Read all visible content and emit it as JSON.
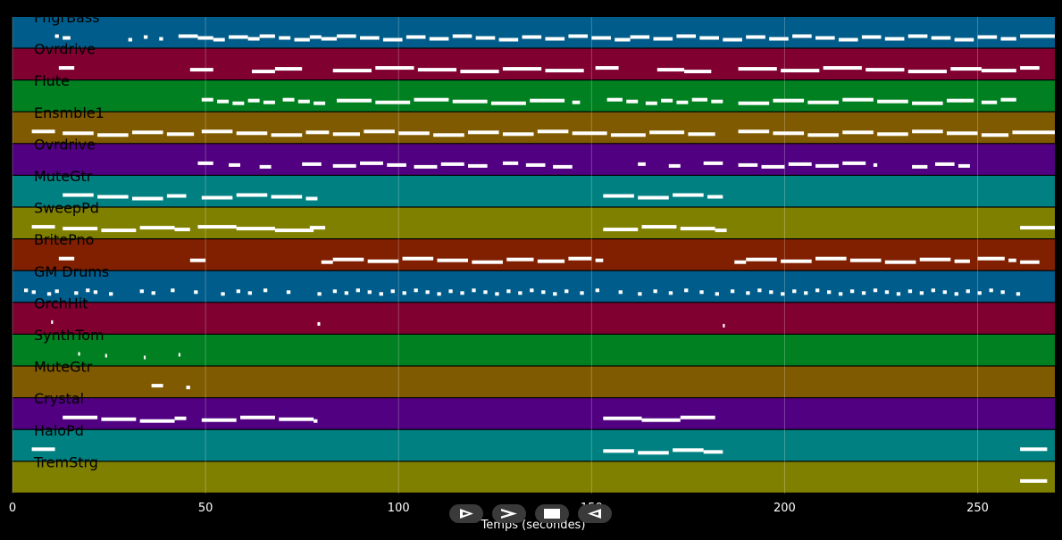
{
  "chart_data": {
    "type": "piano-roll",
    "xlabel": "Temps (secondes)",
    "xlim": [
      0,
      270
    ],
    "xticks": [
      0,
      50,
      100,
      150,
      200,
      250
    ],
    "grid": true,
    "tracks": [
      {
        "name": "FngrBass",
        "color": "#005c8a",
        "notes": [
          [
            11,
            1
          ],
          [
            13,
            2
          ],
          [
            30,
            1
          ],
          [
            34,
            1
          ],
          [
            38,
            1
          ],
          [
            43,
            5
          ],
          [
            48,
            4
          ],
          [
            52,
            3
          ],
          [
            56,
            5
          ],
          [
            61,
            3
          ],
          [
            64,
            4
          ],
          [
            69,
            3
          ],
          [
            73,
            4
          ],
          [
            77,
            3
          ],
          [
            80,
            4
          ],
          [
            84,
            5
          ],
          [
            90,
            5
          ],
          [
            96,
            5
          ],
          [
            102,
            5
          ],
          [
            108,
            5
          ],
          [
            114,
            5
          ],
          [
            120,
            5
          ],
          [
            126,
            5
          ],
          [
            132,
            5
          ],
          [
            138,
            5
          ],
          [
            144,
            5
          ],
          [
            150,
            5
          ],
          [
            156,
            4
          ],
          [
            160,
            5
          ],
          [
            166,
            5
          ],
          [
            172,
            5
          ],
          [
            178,
            5
          ],
          [
            184,
            5
          ],
          [
            190,
            5
          ],
          [
            196,
            5
          ],
          [
            202,
            5
          ],
          [
            208,
            5
          ],
          [
            214,
            5
          ],
          [
            220,
            5
          ],
          [
            226,
            5
          ],
          [
            232,
            5
          ],
          [
            238,
            5
          ],
          [
            244,
            5
          ],
          [
            250,
            5
          ],
          [
            256,
            4
          ],
          [
            261,
            9
          ]
        ]
      },
      {
        "name": "Ovrdrive",
        "color": "#800030",
        "notes": [
          [
            12,
            4
          ],
          [
            46,
            6
          ],
          [
            62,
            6
          ],
          [
            68,
            7
          ],
          [
            83,
            10
          ],
          [
            94,
            10
          ],
          [
            105,
            10
          ],
          [
            116,
            10
          ],
          [
            127,
            10
          ],
          [
            138,
            10
          ],
          [
            151,
            6
          ],
          [
            167,
            7
          ],
          [
            174,
            7
          ],
          [
            188,
            10
          ],
          [
            199,
            10
          ],
          [
            210,
            10
          ],
          [
            221,
            10
          ],
          [
            232,
            10
          ],
          [
            243,
            8
          ],
          [
            251,
            9
          ],
          [
            261,
            5
          ]
        ]
      },
      {
        "name": "Flute",
        "color": "#008020",
        "notes": [
          [
            49,
            3
          ],
          [
            53,
            3
          ],
          [
            57,
            3
          ],
          [
            61,
            3
          ],
          [
            65,
            3
          ],
          [
            70,
            3
          ],
          [
            74,
            3
          ],
          [
            78,
            3
          ],
          [
            84,
            9
          ],
          [
            94,
            9
          ],
          [
            104,
            9
          ],
          [
            114,
            9
          ],
          [
            124,
            9
          ],
          [
            134,
            9
          ],
          [
            145,
            2
          ],
          [
            154,
            4
          ],
          [
            159,
            3
          ],
          [
            164,
            3
          ],
          [
            168,
            3
          ],
          [
            172,
            3
          ],
          [
            176,
            4
          ],
          [
            181,
            3
          ],
          [
            188,
            8
          ],
          [
            197,
            8
          ],
          [
            206,
            8
          ],
          [
            215,
            8
          ],
          [
            224,
            8
          ],
          [
            233,
            8
          ],
          [
            242,
            7
          ],
          [
            251,
            4
          ],
          [
            256,
            4
          ]
        ]
      },
      {
        "name": "Ensmble1",
        "color": "#805a00",
        "notes": [
          [
            5,
            6
          ],
          [
            13,
            8
          ],
          [
            22,
            8
          ],
          [
            31,
            8
          ],
          [
            40,
            7
          ],
          [
            49,
            8
          ],
          [
            58,
            8
          ],
          [
            67,
            8
          ],
          [
            76,
            6
          ],
          [
            83,
            7
          ],
          [
            91,
            8
          ],
          [
            100,
            8
          ],
          [
            109,
            8
          ],
          [
            118,
            8
          ],
          [
            127,
            8
          ],
          [
            136,
            8
          ],
          [
            145,
            9
          ],
          [
            155,
            9
          ],
          [
            165,
            9
          ],
          [
            175,
            7
          ],
          [
            188,
            8
          ],
          [
            197,
            8
          ],
          [
            206,
            8
          ],
          [
            215,
            8
          ],
          [
            224,
            8
          ],
          [
            233,
            8
          ],
          [
            242,
            8
          ],
          [
            251,
            7
          ],
          [
            259,
            11
          ]
        ]
      },
      {
        "name": "Ovrdrive",
        "color": "#500080",
        "notes": [
          [
            48,
            4
          ],
          [
            56,
            3
          ],
          [
            64,
            3
          ],
          [
            75,
            5
          ],
          [
            83,
            6
          ],
          [
            90,
            6
          ],
          [
            97,
            5
          ],
          [
            104,
            6
          ],
          [
            111,
            6
          ],
          [
            118,
            5
          ],
          [
            127,
            4
          ],
          [
            133,
            5
          ],
          [
            140,
            5
          ],
          [
            162,
            2
          ],
          [
            170,
            3
          ],
          [
            179,
            5
          ],
          [
            188,
            5
          ],
          [
            194,
            6
          ],
          [
            201,
            6
          ],
          [
            208,
            6
          ],
          [
            215,
            6
          ],
          [
            223,
            1
          ],
          [
            233,
            4
          ],
          [
            239,
            5
          ],
          [
            245,
            3
          ]
        ]
      },
      {
        "name": "MuteGtr",
        "color": "#008080",
        "notes": [
          [
            13,
            8
          ],
          [
            22,
            8
          ],
          [
            31,
            8
          ],
          [
            40,
            5
          ],
          [
            49,
            8
          ],
          [
            58,
            8
          ],
          [
            67,
            8
          ],
          [
            76,
            3
          ],
          [
            153,
            8
          ],
          [
            162,
            8
          ],
          [
            171,
            8
          ],
          [
            180,
            4
          ]
        ]
      },
      {
        "name": "SweepPd",
        "color": "#808000",
        "notes": [
          [
            5,
            6
          ],
          [
            13,
            9
          ],
          [
            23,
            9
          ],
          [
            33,
            9
          ],
          [
            42,
            4
          ],
          [
            48,
            10
          ],
          [
            58,
            10
          ],
          [
            68,
            10
          ],
          [
            77,
            4
          ],
          [
            153,
            9
          ],
          [
            163,
            9
          ],
          [
            173,
            9
          ],
          [
            182,
            3
          ],
          [
            261,
            9
          ]
        ]
      },
      {
        "name": "BritePno",
        "color": "#802000",
        "notes": [
          [
            12,
            4
          ],
          [
            46,
            4
          ],
          [
            80,
            3
          ],
          [
            83,
            8
          ],
          [
            92,
            8
          ],
          [
            101,
            8
          ],
          [
            110,
            8
          ],
          [
            119,
            8
          ],
          [
            128,
            7
          ],
          [
            136,
            7
          ],
          [
            144,
            6
          ],
          [
            151,
            2
          ],
          [
            187,
            3
          ],
          [
            190,
            8
          ],
          [
            199,
            8
          ],
          [
            208,
            8
          ],
          [
            217,
            8
          ],
          [
            226,
            8
          ],
          [
            235,
            8
          ],
          [
            244,
            4
          ],
          [
            250,
            7
          ],
          [
            258,
            2
          ],
          [
            261,
            5
          ]
        ]
      },
      {
        "name": "GM Drums",
        "color": "#005c8a",
        "notes": [
          [
            3,
            1
          ],
          [
            5,
            1
          ],
          [
            9,
            1
          ],
          [
            11,
            1
          ],
          [
            16,
            1
          ],
          [
            19,
            1
          ],
          [
            21,
            1
          ],
          [
            25,
            1
          ],
          [
            33,
            1
          ],
          [
            36,
            1
          ],
          [
            41,
            1
          ],
          [
            47,
            1
          ],
          [
            54,
            1
          ],
          [
            58,
            1
          ],
          [
            61,
            1
          ],
          [
            65,
            1
          ],
          [
            71,
            1
          ],
          [
            79,
            1
          ],
          [
            83,
            1
          ],
          [
            86,
            1
          ],
          [
            89,
            1
          ],
          [
            92,
            1
          ],
          [
            95,
            1
          ],
          [
            98,
            1
          ],
          [
            101,
            1
          ],
          [
            104,
            1
          ],
          [
            107,
            1
          ],
          [
            110,
            1
          ],
          [
            113,
            1
          ],
          [
            116,
            1
          ],
          [
            119,
            1
          ],
          [
            122,
            1
          ],
          [
            125,
            1
          ],
          [
            128,
            1
          ],
          [
            131,
            1
          ],
          [
            134,
            1
          ],
          [
            137,
            1
          ],
          [
            140,
            1
          ],
          [
            143,
            1
          ],
          [
            147,
            1
          ],
          [
            151,
            1
          ],
          [
            157,
            1
          ],
          [
            162,
            1
          ],
          [
            166,
            1
          ],
          [
            170,
            1
          ],
          [
            174,
            1
          ],
          [
            178,
            1
          ],
          [
            182,
            1
          ],
          [
            186,
            1
          ],
          [
            190,
            1
          ],
          [
            193,
            1
          ],
          [
            196,
            1
          ],
          [
            199,
            1
          ],
          [
            202,
            1
          ],
          [
            205,
            1
          ],
          [
            208,
            1
          ],
          [
            211,
            1
          ],
          [
            214,
            1
          ],
          [
            217,
            1
          ],
          [
            220,
            1
          ],
          [
            223,
            1
          ],
          [
            226,
            1
          ],
          [
            229,
            1
          ],
          [
            232,
            1
          ],
          [
            235,
            1
          ],
          [
            238,
            1
          ],
          [
            241,
            1
          ],
          [
            244,
            1
          ],
          [
            247,
            1
          ],
          [
            250,
            1
          ],
          [
            253,
            1
          ],
          [
            256,
            1
          ],
          [
            260,
            1
          ]
        ]
      },
      {
        "name": "OrchHit",
        "color": "#800030",
        "notes": [
          [
            10,
            0.5
          ],
          [
            79,
            0.7
          ],
          [
            184,
            0.5
          ]
        ]
      },
      {
        "name": "SynthTom",
        "color": "#008020",
        "notes": [
          [
            17,
            0.5
          ],
          [
            24,
            0.5
          ],
          [
            34,
            0.5
          ],
          [
            43,
            0.5
          ]
        ]
      },
      {
        "name": "MuteGtr",
        "color": "#805a00",
        "notes": [
          [
            36,
            3
          ],
          [
            45,
            1
          ]
        ]
      },
      {
        "name": "Crystal",
        "color": "#500080",
        "notes": [
          [
            13,
            9
          ],
          [
            23,
            9
          ],
          [
            33,
            9
          ],
          [
            42,
            3
          ],
          [
            49,
            9
          ],
          [
            59,
            9
          ],
          [
            69,
            9
          ],
          [
            78,
            1
          ],
          [
            153,
            10
          ],
          [
            163,
            10
          ],
          [
            173,
            9
          ]
        ]
      },
      {
        "name": "HaloPd",
        "color": "#008080",
        "notes": [
          [
            5,
            6
          ],
          [
            153,
            8
          ],
          [
            162,
            8
          ],
          [
            171,
            8
          ],
          [
            179,
            5
          ],
          [
            261,
            7
          ]
        ]
      },
      {
        "name": "TremStrg",
        "color": "#808000",
        "notes": [
          [
            261,
            7
          ]
        ]
      }
    ]
  },
  "controls": [
    {
      "name": "play",
      "icon": "play-icon"
    },
    {
      "name": "fast-forward",
      "icon": "fast-forward-icon"
    },
    {
      "name": "stop",
      "icon": "stop-icon"
    },
    {
      "name": "rewind",
      "icon": "rewind-icon"
    }
  ]
}
